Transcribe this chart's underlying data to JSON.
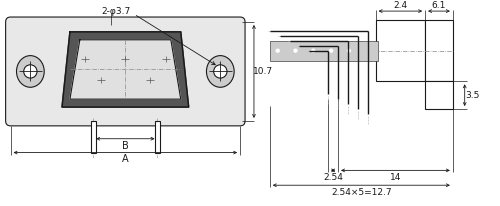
{
  "bg_color": "#ffffff",
  "line_color": "#1a1a1a",
  "dim_color": "#1a1a1a",
  "gray_light": "#e8e8e8",
  "gray_mid": "#cccccc",
  "gray_dark": "#aaaaaa",
  "annotations": {
    "phi_label": "2-φ3.7",
    "dim_107": "10.7",
    "dim_B": "B",
    "dim_A": "A",
    "dim_24": "2.4",
    "dim_61": "6.1",
    "dim_35": "3.5",
    "dim_254": "2.54",
    "dim_14": "14",
    "dim_bottom": "2.54×5=12.7"
  }
}
